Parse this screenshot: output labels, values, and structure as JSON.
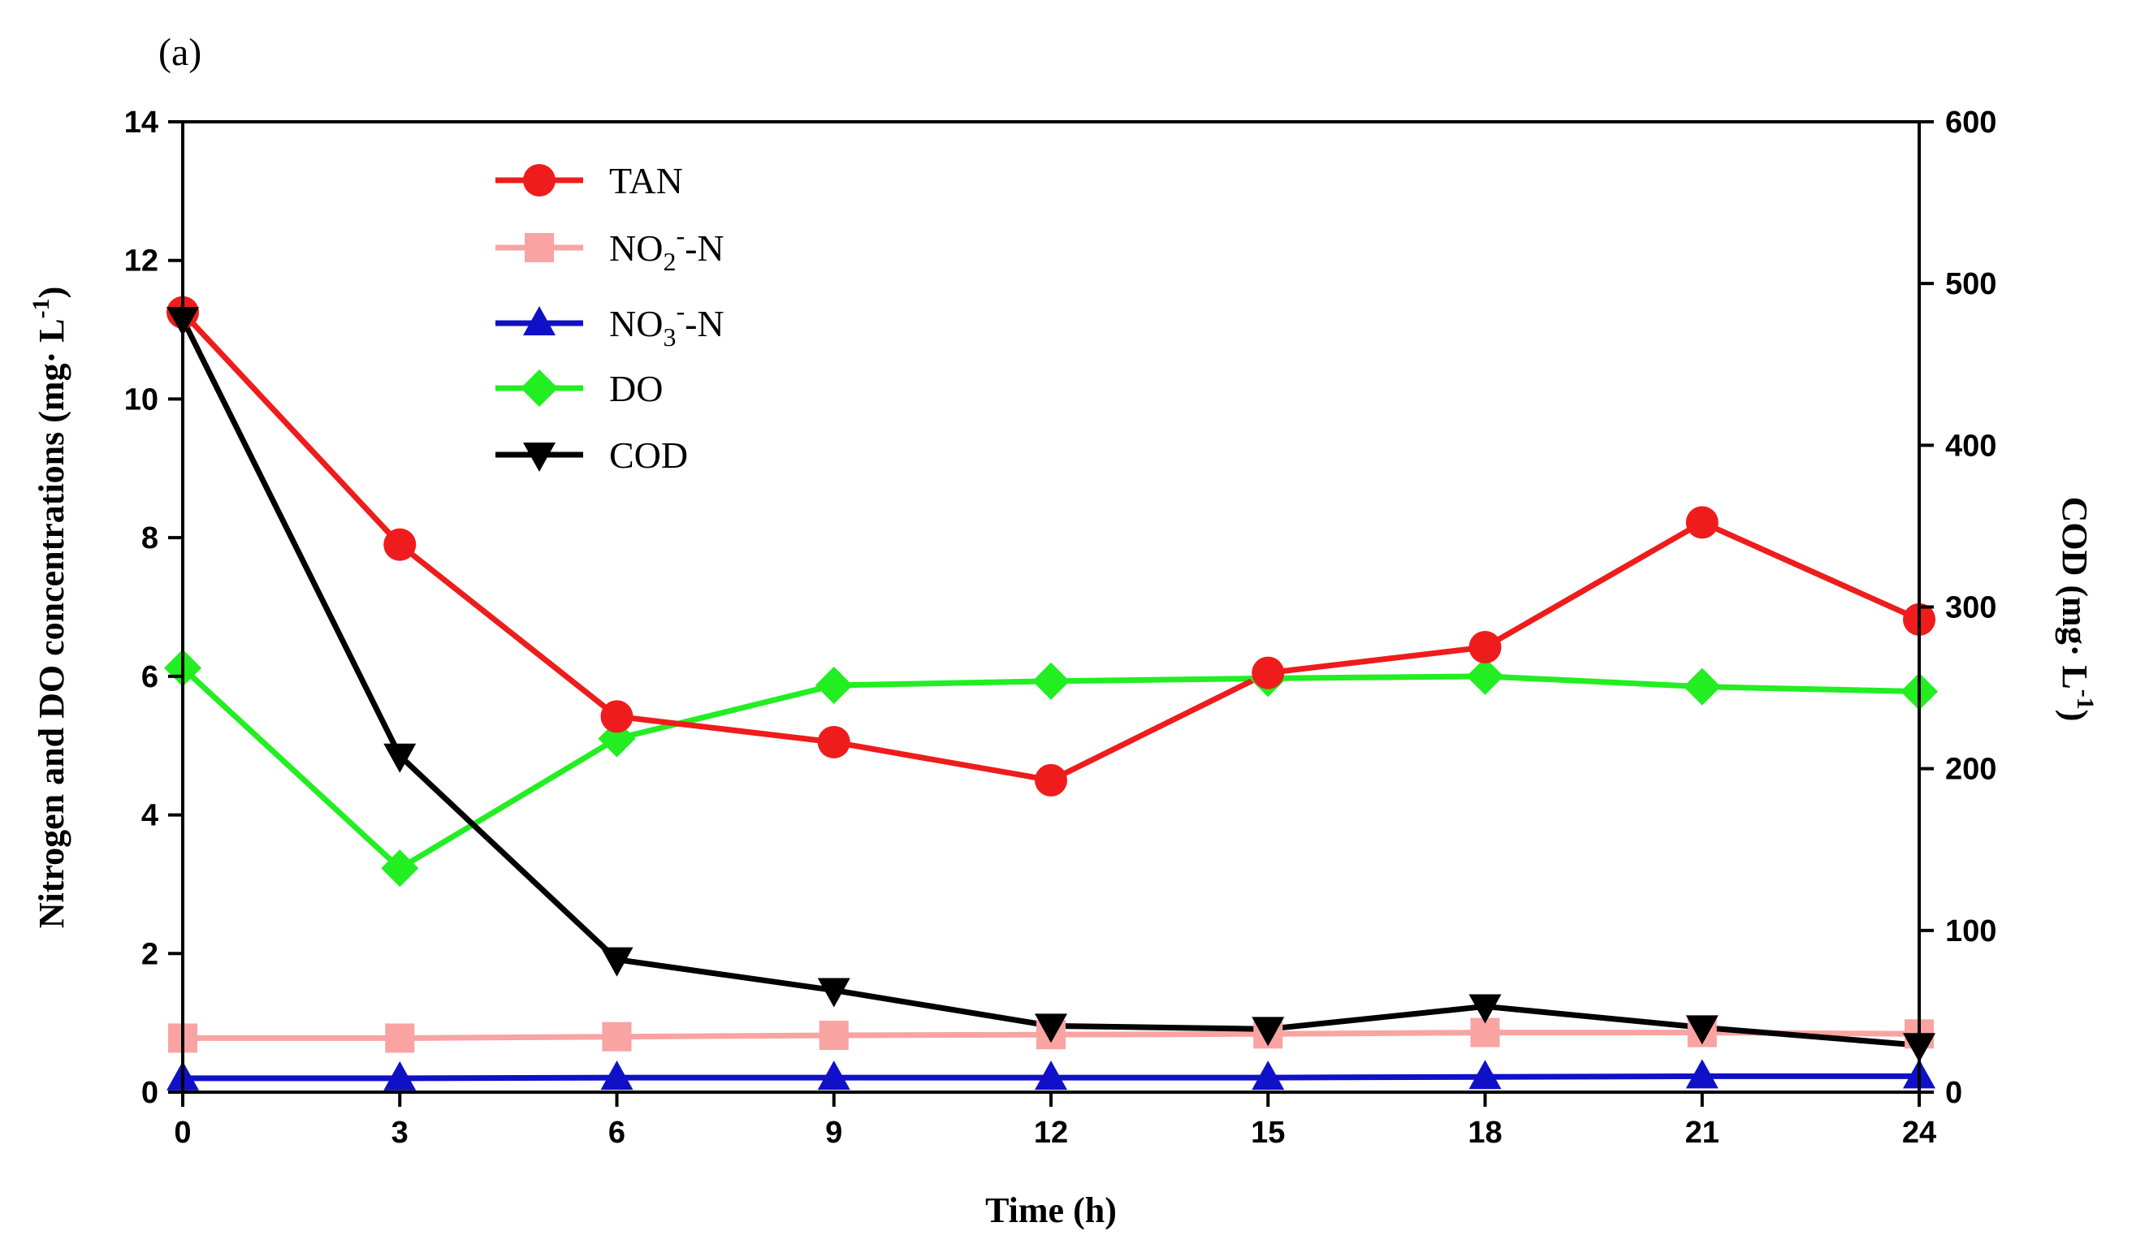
{
  "chart_data": {
    "type": "line",
    "panel_label": "(a)",
    "x": [
      0,
      3,
      6,
      9,
      12,
      15,
      18,
      21,
      24
    ],
    "xlabel": "Time (h)",
    "xlim": [
      0,
      24
    ],
    "xticks": [
      0,
      3,
      6,
      9,
      12,
      15,
      18,
      21,
      24
    ],
    "y_left": {
      "label_main": "Nitrogen and DO concentrations (mg· L",
      "label_sup": "-1",
      "label_close": ")",
      "ylim": [
        0,
        14
      ],
      "ticks": [
        0,
        2,
        4,
        6,
        8,
        10,
        12,
        14
      ]
    },
    "y_right": {
      "label_main": "COD (mg· L",
      "label_sup": "-1",
      "label_close": ")",
      "ylim": [
        0,
        600
      ],
      "ticks": [
        0,
        100,
        200,
        300,
        400,
        500,
        600
      ]
    },
    "series": [
      {
        "name": "TAN",
        "legend_main": "TAN",
        "legend_sub": "",
        "legend_sup": "",
        "legend_tail": "",
        "axis": "left",
        "color": "#ee1c1c",
        "marker": "circle",
        "values": [
          11.25,
          7.9,
          5.42,
          5.05,
          4.5,
          6.05,
          6.42,
          8.22,
          6.82
        ]
      },
      {
        "name": "NO2--N",
        "legend_main": "NO",
        "legend_sub": "2",
        "legend_sup": "-",
        "legend_tail": "-N",
        "axis": "left",
        "color": "#f9a3a3",
        "marker": "square",
        "values": [
          0.78,
          0.78,
          0.8,
          0.82,
          0.83,
          0.84,
          0.86,
          0.86,
          0.84
        ]
      },
      {
        "name": "NO3--N",
        "legend_main": "NO",
        "legend_sub": "3",
        "legend_sup": "-",
        "legend_tail": "-N",
        "axis": "left",
        "color": "#1010c8",
        "marker": "triangle-up",
        "values": [
          0.2,
          0.2,
          0.21,
          0.21,
          0.21,
          0.21,
          0.22,
          0.23,
          0.23
        ]
      },
      {
        "name": "DO",
        "legend_main": "DO",
        "legend_sub": "",
        "legend_sup": "",
        "legend_tail": "",
        "axis": "left",
        "color": "#22ee22",
        "marker": "diamond",
        "values": [
          6.12,
          3.23,
          5.1,
          5.87,
          5.93,
          5.97,
          6.0,
          5.85,
          5.78
        ]
      },
      {
        "name": "COD",
        "legend_main": "COD",
        "legend_sub": "",
        "legend_sup": "",
        "legend_tail": "",
        "axis": "right",
        "color": "#000000",
        "marker": "triangle-down",
        "values": [
          478,
          208,
          82,
          63,
          41,
          39,
          53,
          40,
          29
        ]
      }
    ],
    "legend_position": "top-left"
  }
}
